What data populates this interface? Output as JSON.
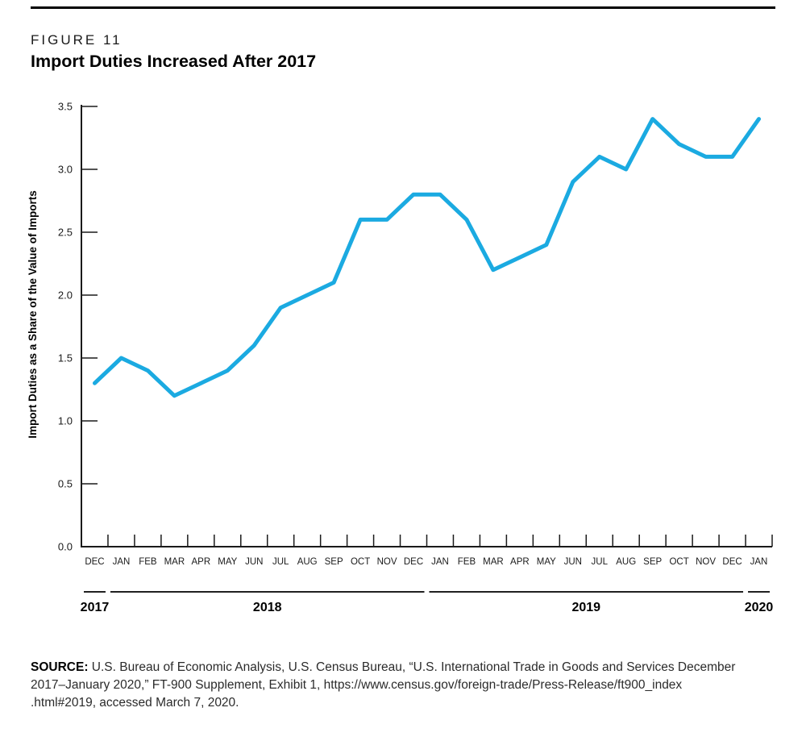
{
  "header": {
    "figure_label": "FIGURE 11",
    "title": "Import Duties Increased After 2017"
  },
  "chart_data": {
    "type": "line",
    "title": "Import Duties Increased After 2017",
    "xlabel": "",
    "ylabel": "Import Duties as a Share of the Value of Imports",
    "ylim": [
      0.0,
      3.5
    ],
    "ytick_step": 0.5,
    "yticks": [
      "0.0",
      "0.5",
      "1.0",
      "1.5",
      "2.0",
      "2.5",
      "3.0",
      "3.5"
    ],
    "grid": false,
    "legend": "none",
    "line_color": "#1BAAE1",
    "axis_color": "#1a1a1a",
    "categories": [
      "DEC",
      "JAN",
      "FEB",
      "MAR",
      "APR",
      "MAY",
      "JUN",
      "JUL",
      "AUG",
      "SEP",
      "OCT",
      "NOV",
      "DEC",
      "JAN",
      "FEB",
      "MAR",
      "APR",
      "MAY",
      "JUN",
      "JUL",
      "AUG",
      "SEP",
      "OCT",
      "NOV",
      "DEC",
      "JAN"
    ],
    "values": [
      1.3,
      1.5,
      1.4,
      1.2,
      1.3,
      1.4,
      1.6,
      1.9,
      2.0,
      2.1,
      2.6,
      2.6,
      2.8,
      2.8,
      2.6,
      2.2,
      2.3,
      2.4,
      2.9,
      3.1,
      3.0,
      3.4,
      3.2,
      3.1,
      3.1,
      3.4
    ],
    "year_groups": [
      {
        "label": "2017",
        "count": 1
      },
      {
        "label": "2018",
        "count": 12
      },
      {
        "label": "2019",
        "count": 12
      },
      {
        "label": "2020",
        "count": 1
      }
    ]
  },
  "source": {
    "label": "SOURCE:",
    "lines": [
      "U.S. Bureau of Economic Analysis, U.S. Census Bureau, “U.S. International Trade in Goods and Services December",
      "2017–January 2020,” FT-900 Supplement, Exhibit 1, https://www.census.gov/foreign-trade/Press-Release/ft900_index",
      ".html#2019, accessed March 7, 2020."
    ]
  }
}
